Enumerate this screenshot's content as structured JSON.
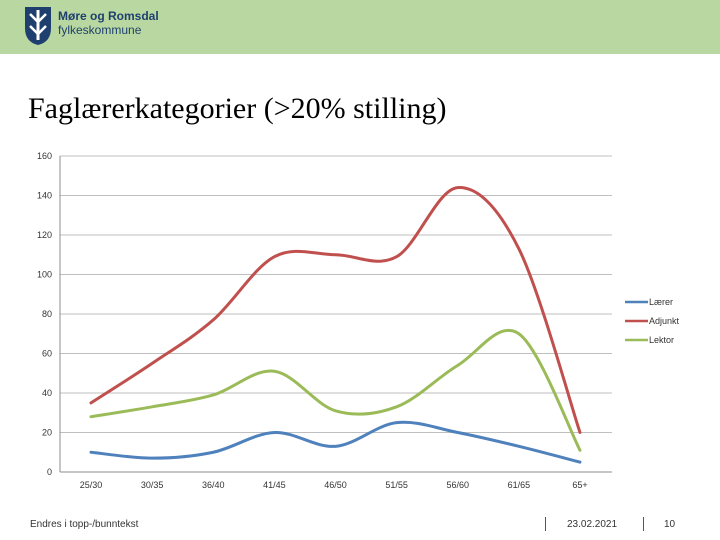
{
  "header": {
    "org_line1": "Møre og Romsdal",
    "org_line2": "fylkeskommune",
    "bg_color": "#b9d8a1"
  },
  "slide": {
    "title": "Faglærerkategorier (>20% stilling)"
  },
  "chart_data": {
    "type": "line",
    "categories": [
      "25/30",
      "30/35",
      "36/40",
      "41/45",
      "46/50",
      "51/55",
      "56/60",
      "61/65",
      "65+"
    ],
    "series": [
      {
        "name": "Lærer",
        "color": "#4f81bd",
        "values": [
          10,
          7,
          10,
          20,
          13,
          25,
          20,
          13,
          5
        ]
      },
      {
        "name": "Adjunkt",
        "color": "#c0504d",
        "values": [
          35,
          55,
          77,
          109,
          110,
          109,
          144,
          113,
          20
        ]
      },
      {
        "name": "Lektor",
        "color": "#9bbb59",
        "values": [
          28,
          33,
          39,
          51,
          31,
          33,
          54,
          70,
          11
        ]
      }
    ],
    "y_ticks": [
      "0",
      "20",
      "40",
      "60",
      "80",
      "100",
      "120",
      "140",
      "160"
    ],
    "ylim": [
      0,
      160
    ],
    "grid": true,
    "legend": "right",
    "title": "",
    "xlabel": "",
    "ylabel": ""
  },
  "footer": {
    "left_text": "Endres i topp-/bunntekst",
    "date": "23.02.2021",
    "page_number": "10"
  }
}
